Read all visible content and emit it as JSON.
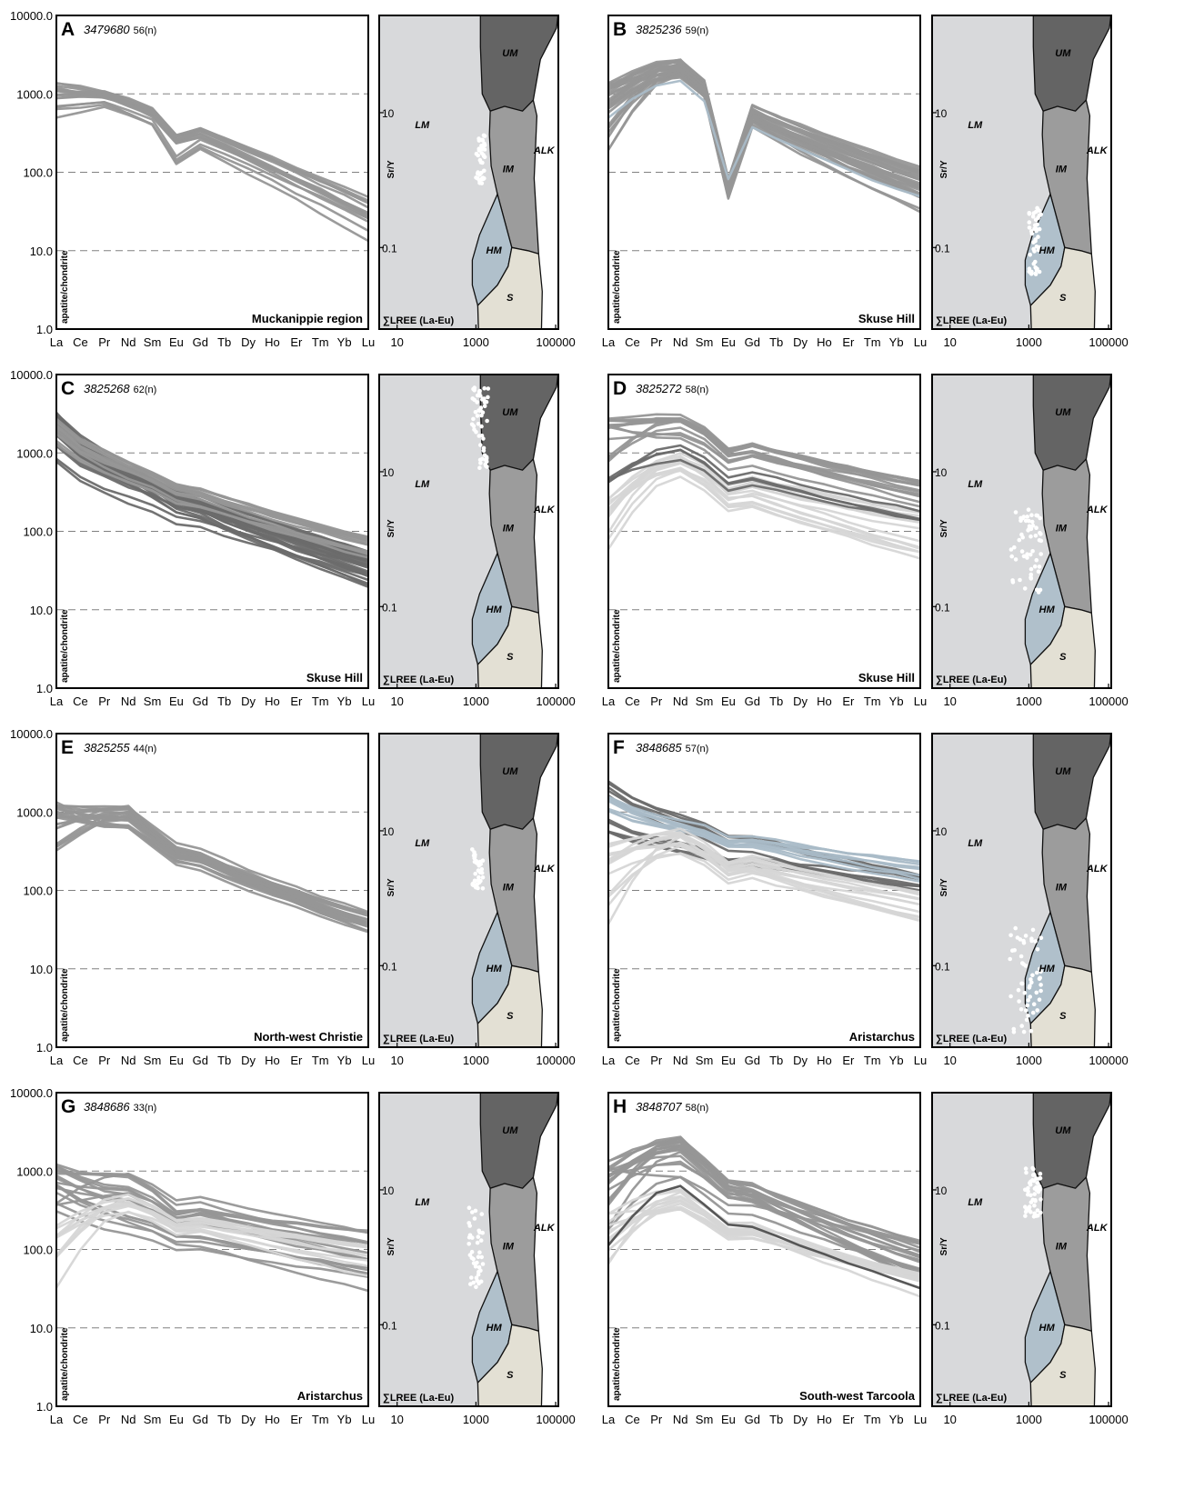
{
  "figure": {
    "colors": {
      "dark": "#6b6b6b",
      "mid": "#969696",
      "light": "#d6d6d6",
      "blue": "#a9bac7",
      "black": "#4f4f4f",
      "field_lm": "#d8d9db",
      "field_um": "#646464",
      "field_im": "#9c9c9c",
      "field_hm": "#b0c0cb",
      "field_s": "#e3e0d4",
      "dots": "#ffffff",
      "grid": "#808080"
    },
    "ree_axis": {
      "elements": [
        "La",
        "Ce",
        "Pr",
        "Nd",
        "Sm",
        "Eu",
        "Gd",
        "Tb",
        "Dy",
        "Ho",
        "Er",
        "Tm",
        "Yb",
        "Lu"
      ],
      "ytick_labels": [
        "10000.0",
        "1000.0",
        "100.0",
        "10.0",
        "1.0"
      ],
      "ylabel": "apatite/chondrite",
      "yscale": "log",
      "ylim": [
        1,
        10000
      ]
    },
    "discrim_axis": {
      "xlabel": "∑LREE (La-Eu)",
      "ylabel": "Sr/Y",
      "xtick_labels": [
        "10",
        "1000",
        "100000"
      ],
      "ytick_labels": [
        "10",
        "0.1"
      ],
      "xscale": "log",
      "yscale": "log",
      "fields": [
        {
          "key": "LM",
          "label": "LM"
        },
        {
          "key": "UM",
          "label": "UM"
        },
        {
          "key": "IM",
          "label": "IM"
        },
        {
          "key": "HM",
          "label": "HM"
        },
        {
          "key": "S",
          "label": "S"
        },
        {
          "key": "ALK",
          "label": "ALK"
        }
      ]
    }
  },
  "chart_data": [
    {
      "type": "line",
      "letter": "A",
      "sample": "3479680",
      "n": "56(n)",
      "location": "Muckanippie region",
      "groups": [
        {
          "color": "mid",
          "count": 12,
          "start": [
            900,
            1450
          ],
          "mid": [
            900,
            1100
          ],
          "mid_spread": 300,
          "end": [
            22,
            50
          ],
          "eu": 0.6,
          "shape": "flat"
        },
        {
          "color": "mid",
          "count": 4,
          "start": [
            460,
            700
          ],
          "mid": [
            650,
            800
          ],
          "mid_spread": 250,
          "end": [
            13,
            35
          ],
          "eu": 0.45,
          "shape": "flat"
        }
      ],
      "dots": {
        "cx": [
          1500,
          2500
        ],
        "cy": [
          2.8,
          6.5
        ],
        "count": 40
      }
    },
    {
      "type": "line",
      "letter": "B",
      "sample": "3825236",
      "n": "59(n)",
      "location": "Skuse Hill",
      "groups": [
        {
          "color": "mid",
          "count": 28,
          "start": [
            120,
            1400
          ],
          "mid": [
            1600,
            2800
          ],
          "mid_spread": 900,
          "end": [
            30,
            120
          ],
          "eu": 0.08,
          "shape": "hump"
        },
        {
          "color": "blue",
          "count": 1,
          "start": [
            500,
            500
          ],
          "mid": [
            1500,
            1500
          ],
          "mid_spread": 0,
          "end": [
            48,
            48
          ],
          "eu": 0.15,
          "shape": "hump"
        }
      ],
      "dots": {
        "cx": [
          1500,
          3000
        ],
        "cy": [
          0.6,
          1.9
        ],
        "count": 45
      }
    },
    {
      "type": "line",
      "letter": "C",
      "sample": "3825268",
      "n": "62(n)",
      "location": "Skuse Hill",
      "groups": [
        {
          "color": "dark",
          "count": 30,
          "start": [
            700,
            3300
          ],
          "mid": [
            400,
            900
          ],
          "mid_spread": 300,
          "end": [
            20,
            55
          ],
          "eu": 0.9,
          "shape": "decline"
        },
        {
          "color": "mid",
          "count": 12,
          "start": [
            1000,
            2800
          ],
          "mid": [
            500,
            1000
          ],
          "mid_spread": 300,
          "end": [
            45,
            85
          ],
          "eu": 0.9,
          "shape": "decline"
        }
      ],
      "dots": {
        "cx": [
          1200,
          3000
        ],
        "cy": [
          10,
          40
        ],
        "count": 55
      }
    },
    {
      "type": "line",
      "letter": "D",
      "sample": "3825272",
      "n": "58(n)",
      "location": "Skuse Hill",
      "groups": [
        {
          "color": "mid",
          "count": 14,
          "start": [
            700,
            2800
          ],
          "mid": [
            1500,
            3200
          ],
          "mid_spread": 800,
          "end": [
            200,
            450
          ],
          "eu": 0.7,
          "shape": "hump"
        },
        {
          "color": "light",
          "count": 14,
          "start": [
            30,
            300
          ],
          "mid": [
            500,
            1000
          ],
          "mid_spread": 400,
          "end": [
            40,
            180
          ],
          "eu": 0.7,
          "shape": "hump"
        },
        {
          "color": "dark",
          "count": 4,
          "start": [
            300,
            800
          ],
          "mid": [
            700,
            1300
          ],
          "mid_spread": 300,
          "end": [
            120,
            200
          ],
          "eu": 0.7,
          "shape": "hump"
        }
      ],
      "dots": {
        "cx": [
          500,
          3000
        ],
        "cy": [
          1.2,
          5
        ],
        "count": 55
      }
    },
    {
      "type": "line",
      "letter": "E",
      "sample": "3825255",
      "n": "44(n)",
      "location": "North-west Christie",
      "groups": [
        {
          "color": "mid",
          "count": 22,
          "start": [
            300,
            1400
          ],
          "mid": [
            600,
            1200
          ],
          "mid_spread": 300,
          "end": [
            25,
            55
          ],
          "eu": 0.85,
          "shape": "hump"
        }
      ],
      "dots": {
        "cx": [
          1200,
          2200
        ],
        "cy": [
          3.5,
          7
        ],
        "count": 35
      }
    },
    {
      "type": "line",
      "letter": "F",
      "sample": "3848685",
      "n": "57(n)",
      "location": "Aristarchus",
      "groups": [
        {
          "color": "dark",
          "count": 10,
          "start": [
            500,
            2500
          ],
          "mid": [
            500,
            1000
          ],
          "mid_spread": 400,
          "end": [
            80,
            160
          ],
          "eu": 0.85,
          "shape": "decline"
        },
        {
          "color": "blue",
          "count": 8,
          "start": [
            800,
            1600
          ],
          "mid": [
            700,
            1400
          ],
          "mid_spread": 400,
          "end": [
            120,
            250
          ],
          "eu": 0.85,
          "shape": "decline"
        },
        {
          "color": "light",
          "count": 14,
          "start": [
            10,
            400
          ],
          "mid": [
            300,
            600
          ],
          "mid_spread": 200,
          "end": [
            25,
            100
          ],
          "eu": 0.7,
          "shape": "hump"
        }
      ],
      "dots": {
        "cx": [
          500,
          3000
        ],
        "cy": [
          0.3,
          1.8
        ],
        "count": 55
      }
    },
    {
      "type": "line",
      "letter": "G",
      "sample": "3848686",
      "n": "33(n)",
      "location": "Aristarchus",
      "groups": [
        {
          "color": "mid",
          "count": 12,
          "start": [
            300,
            1200
          ],
          "mid": [
            400,
            1000
          ],
          "mid_spread": 300,
          "end": [
            60,
            180
          ],
          "eu": 0.75,
          "shape": "hump"
        },
        {
          "color": "mid",
          "count": 6,
          "start": [
            300,
            700
          ],
          "mid": [
            500,
            900
          ],
          "mid_spread": 300,
          "end": [
            30,
            60
          ],
          "eu": 0.85,
          "shape": "decline"
        },
        {
          "color": "light",
          "count": 10,
          "start": [
            30,
            200
          ],
          "mid": [
            300,
            500
          ],
          "mid_spread": 150,
          "end": [
            45,
            110
          ],
          "eu": 0.8,
          "shape": "hump"
        }
      ],
      "dots": {
        "cx": [
          1000,
          2200
        ],
        "cy": [
          1.8,
          7
        ],
        "count": 40
      }
    },
    {
      "type": "line",
      "letter": "H",
      "sample": "3848707",
      "n": "58(n)",
      "location": "South-west Tarcoola",
      "groups": [
        {
          "color": "mid",
          "count": 20,
          "start": [
            100,
            1400
          ],
          "mid": [
            700,
            2800
          ],
          "mid_spread": 900,
          "end": [
            40,
            130
          ],
          "eu": 0.8,
          "shape": "hump"
        },
        {
          "color": "light",
          "count": 12,
          "start": [
            60,
            300
          ],
          "mid": [
            300,
            600
          ],
          "mid_spread": 200,
          "end": [
            25,
            50
          ],
          "eu": 0.8,
          "shape": "hump"
        },
        {
          "color": "black",
          "count": 1,
          "start": [
            110,
            110
          ],
          "mid": [
            650,
            650
          ],
          "mid_spread": 0,
          "end": [
            33,
            33
          ],
          "eu": 0.8,
          "shape": "hump"
        }
      ],
      "dots": {
        "cx": [
          1200,
          3000
        ],
        "cy": [
          6,
          14
        ],
        "count": 50
      }
    }
  ]
}
